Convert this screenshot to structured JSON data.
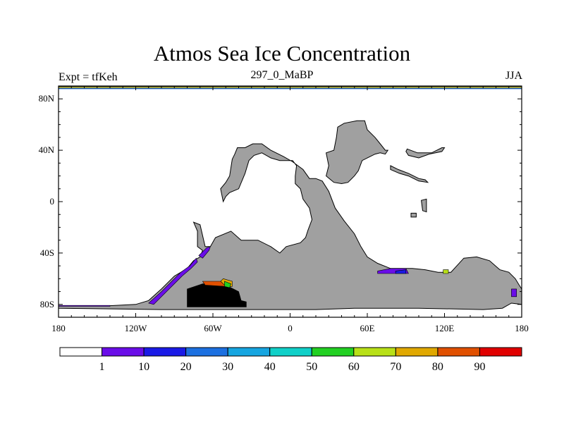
{
  "chart_data": {
    "type": "heatmap",
    "title": "Atmos Sea Ice Concentration",
    "left_label": "Expt = tfKeh",
    "subtitle": "297_0_MaBP",
    "right_label": "JJA",
    "xlim": [
      -180,
      180
    ],
    "ylim": [
      -90,
      90
    ],
    "x_ticks": [
      {
        "value": -180,
        "label": "180"
      },
      {
        "value": -120,
        "label": "120W"
      },
      {
        "value": -60,
        "label": "60W"
      },
      {
        "value": 0,
        "label": "0"
      },
      {
        "value": 60,
        "label": "60E"
      },
      {
        "value": 120,
        "label": "120E"
      },
      {
        "value": 180,
        "label": "180"
      }
    ],
    "y_ticks": [
      {
        "value": 80,
        "label": "80N"
      },
      {
        "value": 40,
        "label": "40N"
      },
      {
        "value": 0,
        "label": "0"
      },
      {
        "value": -40,
        "label": "40S"
      },
      {
        "value": -80,
        "label": "80S"
      }
    ],
    "colorbar": {
      "labels": [
        "1",
        "10",
        "20",
        "30",
        "40",
        "50",
        "60",
        "70",
        "80",
        "90"
      ],
      "colors": [
        "#ffffff",
        "#6a0de8",
        "#1a1ae6",
        "#1c70e0",
        "#16a5e0",
        "#10d0c8",
        "#22d022",
        "#b8e018",
        "#e0a800",
        "#e05000",
        "#e00000"
      ]
    },
    "land_color": "#a0a0a0",
    "land": [
      {
        "name": "north-polar-band",
        "poly": [
          [
            -180,
            89.5
          ],
          [
            180,
            89.5
          ],
          [
            180,
            88.2
          ],
          [
            -180,
            88.2
          ]
        ]
      },
      {
        "name": "americas-africa",
        "poly": [
          [
            -41,
            42
          ],
          [
            -35,
            42
          ],
          [
            -29,
            45
          ],
          [
            -22,
            45
          ],
          [
            -15,
            40
          ],
          [
            -5,
            35
          ],
          [
            2,
            31
          ],
          [
            10,
            25
          ],
          [
            15,
            18
          ],
          [
            20,
            18
          ],
          [
            25,
            16
          ],
          [
            30,
            8
          ],
          [
            35,
            -5
          ],
          [
            42,
            -15
          ],
          [
            50,
            -25
          ],
          [
            55,
            -35
          ],
          [
            60,
            -43
          ],
          [
            68,
            -48
          ],
          [
            78,
            -52
          ],
          [
            95,
            -52
          ],
          [
            105,
            -53
          ],
          [
            115,
            -55
          ],
          [
            125,
            -55
          ],
          [
            135,
            -44
          ],
          [
            145,
            -43
          ],
          [
            155,
            -46
          ],
          [
            163,
            -53
          ],
          [
            170,
            -55
          ],
          [
            175,
            -60
          ],
          [
            178,
            -65
          ],
          [
            180,
            -68
          ],
          [
            180,
            -80
          ],
          [
            172,
            -79
          ],
          [
            165,
            -83
          ],
          [
            150,
            -84
          ],
          [
            100,
            -83
          ],
          [
            50,
            -83
          ],
          [
            20,
            -84
          ],
          [
            -20,
            -84
          ],
          [
            -60,
            -84
          ],
          [
            -100,
            -84
          ],
          [
            -180,
            -83
          ],
          [
            -180,
            -81
          ],
          [
            -140,
            -81
          ],
          [
            -120,
            -80
          ],
          [
            -110,
            -77
          ],
          [
            -100,
            -68
          ],
          [
            -90,
            -58
          ],
          [
            -80,
            -52
          ],
          [
            -75,
            -46
          ],
          [
            -70,
            -43
          ],
          [
            -68,
            -38
          ],
          [
            -72,
            -35
          ],
          [
            -72,
            -23
          ],
          [
            -75,
            -16
          ],
          [
            -70,
            -18
          ],
          [
            -66,
            -35
          ],
          [
            -62,
            -35
          ],
          [
            -58,
            -28
          ],
          [
            -46,
            -23
          ],
          [
            -38,
            -30
          ],
          [
            -25,
            -30
          ],
          [
            -15,
            -35
          ],
          [
            -8,
            -40
          ],
          [
            -3,
            -35
          ],
          [
            8,
            -32
          ],
          [
            12,
            -28
          ],
          [
            14,
            -22
          ],
          [
            17,
            -14
          ],
          [
            15,
            -5
          ],
          [
            10,
            2
          ],
          [
            8,
            10
          ],
          [
            4,
            14
          ],
          [
            4,
            20
          ],
          [
            5,
            28
          ],
          [
            2,
            32
          ],
          [
            -8,
            32
          ],
          [
            -15,
            34
          ],
          [
            -22,
            38
          ],
          [
            -28,
            36
          ],
          [
            -32,
            32
          ],
          [
            -35,
            22
          ],
          [
            -40,
            10
          ],
          [
            -47,
            7
          ],
          [
            -50,
            4
          ],
          [
            -52,
            0
          ],
          [
            -54,
            10
          ],
          [
            -50,
            15
          ],
          [
            -47,
            20
          ],
          [
            -45,
            33
          ],
          [
            -43,
            37
          ]
        ]
      },
      {
        "name": "asia",
        "poly": [
          [
            28,
            20
          ],
          [
            30,
            28
          ],
          [
            28,
            38
          ],
          [
            34,
            40
          ],
          [
            36,
            50
          ],
          [
            37,
            58
          ],
          [
            42,
            61
          ],
          [
            52,
            63
          ],
          [
            58,
            63
          ],
          [
            60,
            56
          ],
          [
            66,
            50
          ],
          [
            70,
            45
          ],
          [
            74,
            40
          ],
          [
            76,
            40
          ],
          [
            74,
            37
          ],
          [
            70,
            38
          ],
          [
            66,
            37
          ],
          [
            62,
            35
          ],
          [
            56,
            32
          ],
          [
            53,
            24
          ],
          [
            50,
            20
          ],
          [
            45,
            15
          ],
          [
            40,
            14
          ],
          [
            34,
            15
          ]
        ]
      },
      {
        "name": "east-asia-island",
        "poly": [
          [
            91,
            41
          ],
          [
            99,
            38
          ],
          [
            110,
            38
          ],
          [
            118,
            42
          ],
          [
            120,
            42
          ],
          [
            118,
            39
          ],
          [
            108,
            37
          ],
          [
            100,
            34
          ],
          [
            92,
            36
          ],
          [
            90,
            39
          ]
        ]
      },
      {
        "name": "southeast-asia",
        "poly": [
          [
            78,
            28
          ],
          [
            84,
            25
          ],
          [
            92,
            22
          ],
          [
            100,
            18
          ],
          [
            105,
            17
          ],
          [
            107,
            15
          ],
          [
            100,
            16
          ],
          [
            92,
            20
          ],
          [
            85,
            22
          ],
          [
            78,
            25
          ]
        ]
      },
      {
        "name": "small-island-a",
        "poly": [
          [
            102,
            1
          ],
          [
            106,
            2
          ],
          [
            106,
            -8
          ],
          [
            103,
            -7
          ]
        ]
      },
      {
        "name": "small-island-b",
        "poly": [
          [
            94,
            -9
          ],
          [
            98,
            -9
          ],
          [
            98,
            -12
          ],
          [
            94,
            -12
          ]
        ]
      }
    ],
    "ice": [
      {
        "level": 11,
        "poly": [
          [
            -80,
            -68
          ],
          [
            -68,
            -64
          ],
          [
            -52,
            -64
          ],
          [
            -40,
            -70
          ],
          [
            -38,
            -77
          ],
          [
            -34,
            -78
          ],
          [
            -34,
            -82
          ],
          [
            -80,
            -82
          ]
        ]
      },
      {
        "level": 9,
        "poly": [
          [
            -68,
            -62
          ],
          [
            -52,
            -62
          ],
          [
            -48,
            -64
          ],
          [
            -50,
            -66
          ],
          [
            -66,
            -65
          ]
        ]
      },
      {
        "level": 8,
        "poly": [
          [
            -52,
            -60
          ],
          [
            -45,
            -62
          ],
          [
            -45,
            -66
          ],
          [
            -50,
            -66
          ],
          [
            -54,
            -62
          ]
        ]
      },
      {
        "level": 6,
        "poly": [
          [
            -51,
            -62
          ],
          [
            -46,
            -64
          ],
          [
            -47,
            -67
          ],
          [
            -51,
            -66
          ]
        ]
      },
      {
        "level": 1,
        "poly": [
          [
            -110,
            -79
          ],
          [
            -100,
            -70
          ],
          [
            -92,
            -62
          ],
          [
            -85,
            -55
          ],
          [
            -78,
            -50
          ],
          [
            -73,
            -44
          ],
          [
            -72,
            -47
          ],
          [
            -77,
            -52
          ],
          [
            -84,
            -58
          ],
          [
            -96,
            -70
          ],
          [
            -106,
            -80
          ]
        ]
      },
      {
        "level": 1,
        "poly": [
          [
            -71,
            -42
          ],
          [
            -65,
            -36
          ],
          [
            -62,
            -35
          ],
          [
            -63,
            -38
          ],
          [
            -68,
            -44
          ]
        ]
      },
      {
        "level": 1,
        "poly": [
          [
            68,
            -54
          ],
          [
            78,
            -52
          ],
          [
            90,
            -52
          ],
          [
            92,
            -56
          ],
          [
            68,
            -56
          ]
        ]
      },
      {
        "level": 2,
        "poly": [
          [
            82,
            -54
          ],
          [
            90,
            -53
          ],
          [
            90,
            -56
          ],
          [
            82,
            -56
          ]
        ]
      },
      {
        "level": 7,
        "poly": [
          [
            119,
            -53
          ],
          [
            123,
            -53
          ],
          [
            123,
            -56
          ],
          [
            119,
            -56
          ]
        ]
      },
      {
        "level": 1,
        "poly": [
          [
            172,
            -68
          ],
          [
            176,
            -68
          ],
          [
            176,
            -74
          ],
          [
            172,
            -74
          ]
        ]
      },
      {
        "level": 1,
        "poly": [
          [
            -180,
            -81.5
          ],
          [
            -140,
            -81.5
          ],
          [
            -140,
            -80.8
          ],
          [
            -180,
            -80.8
          ]
        ]
      }
    ]
  }
}
